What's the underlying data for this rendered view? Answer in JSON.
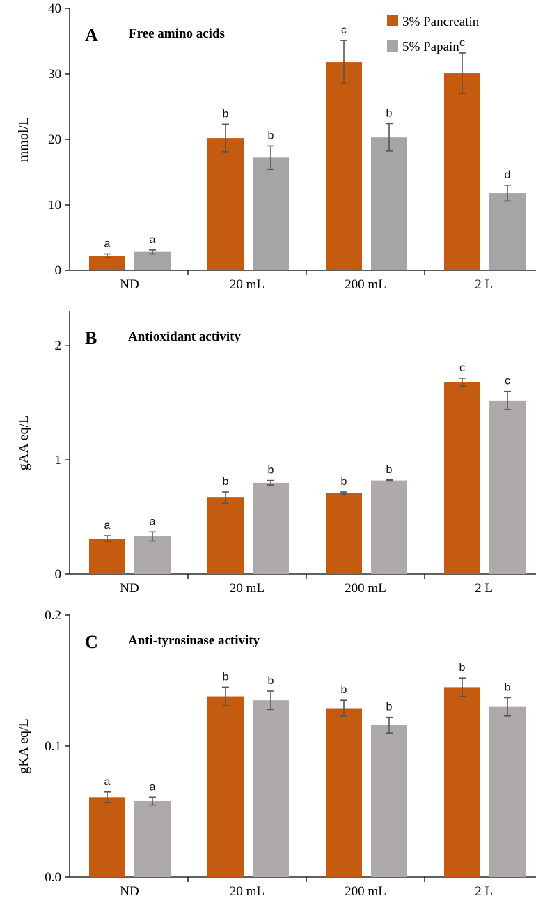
{
  "legend": {
    "position": "top-right",
    "items": [
      {
        "label": "3% Pancreatin",
        "color": "#c55a11"
      },
      {
        "label": "5% Papain",
        "color": "#a5a5a5"
      }
    ]
  },
  "chart_data": [
    {
      "type": "bar",
      "panel": "A",
      "title": "Free amino acids",
      "ylabel": "mmol/L",
      "ylim": [
        0,
        40
      ],
      "yticks": [
        0,
        10,
        20,
        30,
        40
      ],
      "yticks_text": [
        "0",
        "10",
        "20",
        "30",
        "40"
      ],
      "categories": [
        "ND",
        "20 mL",
        "200 mL",
        "2 L"
      ],
      "series": [
        {
          "name": "3% Pancreatin",
          "color": "#c55a11",
          "values": [
            2.2,
            20.2,
            31.8,
            30.1
          ],
          "errors": [
            0.3,
            2.1,
            3.3,
            3.1
          ],
          "labels": [
            "a",
            "b",
            "c",
            "c"
          ]
        },
        {
          "name": "5% Papain",
          "color": "#a5a5a5",
          "values": [
            2.8,
            17.2,
            20.3,
            11.8
          ],
          "errors": [
            0.3,
            1.8,
            2.1,
            1.2
          ],
          "labels": [
            "a",
            "b",
            "b",
            "d"
          ]
        }
      ]
    },
    {
      "type": "bar",
      "panel": "B",
      "title": "Antioxidant activity",
      "ylabel": "gAA eq/L",
      "ylim": [
        0,
        2.3
      ],
      "yticks": [
        0,
        1,
        2
      ],
      "yticks_text": [
        "0",
        "1",
        "2"
      ],
      "categories": [
        "ND",
        "20 mL",
        "200 mL",
        "2 L"
      ],
      "series": [
        {
          "name": "3% Pancreatin",
          "color": "#c55a11",
          "values": [
            0.31,
            0.67,
            0.71,
            1.68
          ],
          "errors": [
            0.025,
            0.05,
            0.01,
            0.035
          ],
          "labels": [
            "a",
            "b",
            "b",
            "c"
          ]
        },
        {
          "name": "5% Papain",
          "color": "#aeaaaa",
          "values": [
            0.33,
            0.8,
            0.82,
            1.52
          ],
          "errors": [
            0.04,
            0.02,
            0.005,
            0.08
          ],
          "labels": [
            "a",
            "b",
            "b",
            "c"
          ]
        }
      ]
    },
    {
      "type": "bar",
      "panel": "C",
      "title": "Anti-tyrosinase activity",
      "ylabel": "gKA eq/L",
      "ylim": [
        0,
        0.2
      ],
      "yticks": [
        0,
        0.1,
        0.2
      ],
      "yticks_text": [
        "0.0",
        "0.1",
        "0.2"
      ],
      "categories": [
        "ND",
        "20 mL",
        "200 mL",
        "2 L"
      ],
      "series": [
        {
          "name": "3% Pancreatin",
          "color": "#c55a11",
          "values": [
            0.061,
            0.138,
            0.129,
            0.145
          ],
          "errors": [
            0.004,
            0.007,
            0.006,
            0.007
          ],
          "labels": [
            "a",
            "b",
            "b",
            "b"
          ]
        },
        {
          "name": "5% Papain",
          "color": "#aeaaaa",
          "values": [
            0.058,
            0.135,
            0.116,
            0.13
          ],
          "errors": [
            0.003,
            0.007,
            0.006,
            0.007
          ],
          "labels": [
            "a",
            "b",
            "b",
            "b"
          ]
        }
      ]
    }
  ]
}
